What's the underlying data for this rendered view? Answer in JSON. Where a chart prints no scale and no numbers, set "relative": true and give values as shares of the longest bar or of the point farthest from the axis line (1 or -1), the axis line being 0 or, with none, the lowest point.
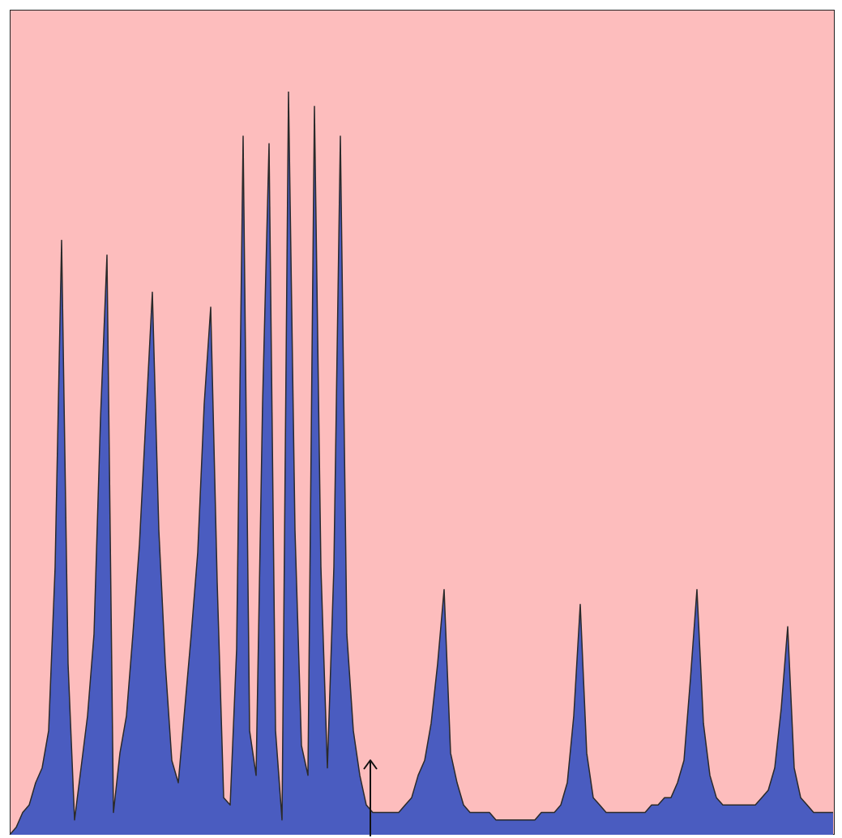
{
  "chart_data": {
    "type": "area",
    "relative": true,
    "color": "#4a5cc0",
    "categories": [
      null,
      null,
      null,
      null,
      null,
      null,
      null,
      null,
      null,
      null,
      null,
      null,
      null,
      null,
      null,
      null,
      null,
      null,
      null,
      null,
      null,
      null,
      null,
      null,
      null,
      null,
      null,
      null,
      null,
      null,
      null,
      null,
      null,
      null,
      null,
      null,
      null,
      null,
      null,
      null,
      null,
      null,
      null,
      null,
      null,
      null,
      null,
      null,
      null,
      null,
      null,
      null,
      null,
      null,
      null,
      null,
      null,
      null,
      null,
      null,
      null,
      null,
      null,
      null,
      null,
      null,
      null,
      null,
      null,
      null,
      null,
      null,
      null,
      null,
      null,
      null,
      null,
      null,
      null,
      null,
      null,
      null,
      null,
      null,
      null,
      null,
      null,
      null,
      null,
      null,
      null,
      null,
      null,
      null,
      null,
      null,
      null,
      null,
      null,
      null,
      null,
      null,
      null,
      null,
      null,
      null,
      null,
      null,
      null,
      null,
      null,
      null,
      null,
      null,
      null,
      null,
      null,
      null,
      null,
      null,
      null,
      null,
      null,
      null,
      null,
      null,
      null,
      null
    ],
    "values": [
      0,
      0.01,
      0.03,
      0.04,
      0.07,
      0.09,
      0.14,
      0.36,
      0.8,
      0.23,
      0.02,
      0.09,
      0.16,
      0.27,
      0.56,
      0.78,
      0.03,
      0.11,
      0.16,
      0.27,
      0.39,
      0.56,
      0.73,
      0.41,
      0.23,
      0.1,
      0.07,
      0.17,
      0.27,
      0.38,
      0.58,
      0.71,
      0.34,
      0.05,
      0.04,
      0.25,
      0.94,
      0.14,
      0.08,
      0.58,
      0.93,
      0.14,
      0.02,
      1.0,
      0.41,
      0.12,
      0.08,
      0.98,
      0.36,
      0.09,
      0.36,
      0.94,
      0.27,
      0.14,
      0.08,
      0.04,
      0.03,
      0.03,
      0.03,
      0.03,
      0.03,
      0.04,
      0.05,
      0.08,
      0.1,
      0.15,
      0.23,
      0.33,
      0.11,
      0.07,
      0.04,
      0.03,
      0.03,
      0.03,
      0.03,
      0.02,
      0.02,
      0.02,
      0.02,
      0.02,
      0.02,
      0.02,
      0.03,
      0.03,
      0.03,
      0.04,
      0.07,
      0.16,
      0.31,
      0.11,
      0.05,
      0.04,
      0.03,
      0.03,
      0.03,
      0.03,
      0.03,
      0.03,
      0.03,
      0.04,
      0.04,
      0.05,
      0.05,
      0.07,
      0.1,
      0.21,
      0.33,
      0.15,
      0.08,
      0.05,
      0.04,
      0.04,
      0.04,
      0.04,
      0.04,
      0.04,
      0.05,
      0.06,
      0.09,
      0.17,
      0.28,
      0.09,
      0.05,
      0.04,
      0.03,
      0.03,
      0.03,
      0.03
    ]
  }
}
